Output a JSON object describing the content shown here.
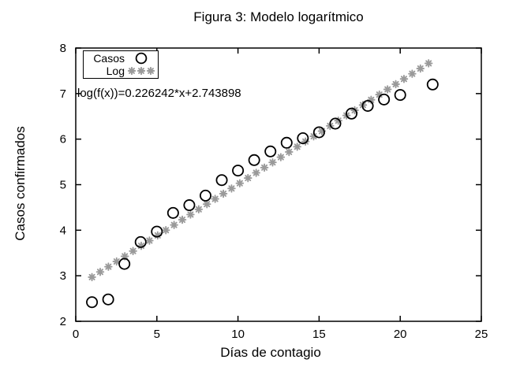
{
  "chart_data": {
    "type": "scatter",
    "title": "Figura 3: Modelo logarítmico",
    "xlabel": "Días de contagio",
    "ylabel": "Casos confirmados",
    "annotation": "log(f(x))=0.226242*x+2.743898",
    "xlim": [
      0,
      25
    ],
    "ylim": [
      2,
      8
    ],
    "xticks": [
      0,
      5,
      10,
      15,
      20,
      25
    ],
    "yticks": [
      2,
      3,
      4,
      5,
      6,
      7,
      8
    ],
    "grid": false,
    "legend_position": "top-left",
    "series": [
      {
        "name": "Casos",
        "marker": "open-circle",
        "color": "#000000",
        "points": [
          [
            1,
            2.42
          ],
          [
            2,
            2.48
          ],
          [
            3,
            3.26
          ],
          [
            4,
            3.74
          ],
          [
            5,
            3.97
          ],
          [
            6,
            4.38
          ],
          [
            7,
            4.55
          ],
          [
            8,
            4.76
          ],
          [
            9,
            5.1
          ],
          [
            10,
            5.31
          ],
          [
            11,
            5.54
          ],
          [
            12,
            5.73
          ],
          [
            13,
            5.92
          ],
          [
            14,
            6.02
          ],
          [
            15,
            6.15
          ],
          [
            16,
            6.34
          ],
          [
            17,
            6.56
          ],
          [
            18,
            6.73
          ],
          [
            19,
            6.87
          ],
          [
            20,
            6.97
          ],
          [
            22,
            7.2
          ]
        ]
      },
      {
        "name": "Log",
        "marker": "asterisk",
        "color": "#9a9a9a",
        "function": {
          "slope": 0.226242,
          "intercept": 2.743898,
          "x_min": 1,
          "x_max": 21.75,
          "samples": 42
        }
      }
    ]
  }
}
